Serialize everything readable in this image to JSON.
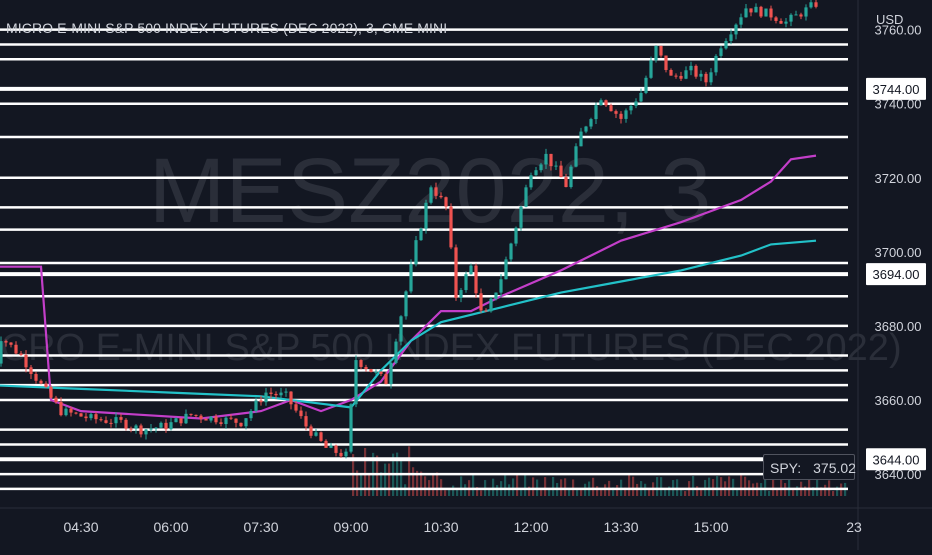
{
  "header": {
    "symbol_title": "MICRO E-MINI S&P 500 INDEX FUTURES (DEC 2022), 3, CME  MINI",
    "currency": "USD"
  },
  "watermark": {
    "ticker": "MESZ2022, 3",
    "description": "MICRO E-MINI S&P 500 INDEX FUTURES (DEC 2022)"
  },
  "spy_label": {
    "name": "SPY:",
    "value": "375.02"
  },
  "colors": {
    "background": "#131722",
    "text": "#d1d4dc",
    "up_candle": "#26a69a",
    "down_candle": "#ef5350",
    "magenta_line": "#c33ec9",
    "cyan_line": "#22c1c8",
    "level_line": "#ffffff",
    "price_tag_bg": "#ffffff",
    "price_tag_text": "#131722"
  },
  "chart_data": {
    "type": "candlestick",
    "title": "MICRO E-MINI S&P 500 INDEX FUTURES (DEC 2022), 3, CME  MINI",
    "ylabel": "USD",
    "ylim": [
      3633,
      3768
    ],
    "x_ticks": [
      "04:30",
      "06:00",
      "07:30",
      "09:00",
      "10:30",
      "12:00",
      "13:30",
      "15:00",
      "23"
    ],
    "y_ticks": [
      3640,
      3660,
      3680,
      3700,
      3720,
      3740,
      3760
    ],
    "price_tags": [
      3744,
      3694,
      3644
    ],
    "horizontal_levels": [
      3644,
      3694,
      3744,
      3636,
      3640,
      3648,
      3652,
      3660,
      3664,
      3668,
      3672,
      3680,
      3688,
      3697,
      3706,
      3712,
      3720,
      3731,
      3740,
      3752,
      3756,
      3760
    ],
    "grid": false,
    "price_path": [
      [
        "03:00",
        3664
      ],
      [
        "03:10",
        3677
      ],
      [
        "03:30",
        3672
      ],
      [
        "03:50",
        3664
      ],
      [
        "04:10",
        3657
      ],
      [
        "04:40",
        3655
      ],
      [
        "05:10",
        3654
      ],
      [
        "05:30",
        3652
      ],
      [
        "05:55",
        3653
      ],
      [
        "06:20",
        3656
      ],
      [
        "06:45",
        3655
      ],
      [
        "07:10",
        3654
      ],
      [
        "07:35",
        3662
      ],
      [
        "07:55",
        3661
      ],
      [
        "08:15",
        3653
      ],
      [
        "08:35",
        3647
      ],
      [
        "08:55",
        3645
      ],
      [
        "09:05",
        3671
      ],
      [
        "09:20",
        3668
      ],
      [
        "09:35",
        3665
      ],
      [
        "09:50",
        3683
      ],
      [
        "10:05",
        3702
      ],
      [
        "10:20",
        3718
      ],
      [
        "10:35",
        3712
      ],
      [
        "10:45",
        3688
      ],
      [
        "11:00",
        3696
      ],
      [
        "11:12",
        3681
      ],
      [
        "11:30",
        3693
      ],
      [
        "11:45",
        3707
      ],
      [
        "12:00",
        3722
      ],
      [
        "12:15",
        3726
      ],
      [
        "12:35",
        3718
      ],
      [
        "12:50",
        3732
      ],
      [
        "13:10",
        3742
      ],
      [
        "13:30",
        3736
      ],
      [
        "13:50",
        3743
      ],
      [
        "14:05",
        3755
      ],
      [
        "14:20",
        3747
      ],
      [
        "14:40",
        3749
      ],
      [
        "14:55",
        3746
      ],
      [
        "15:10",
        3756
      ],
      [
        "15:35",
        3766
      ],
      [
        "16:00",
        3764
      ],
      [
        "16:15",
        3762
      ],
      [
        "16:45",
        3767
      ]
    ],
    "series": [
      {
        "name": "",
        "color": "#c33ec9",
        "points": [
          [
            "03:00",
            3696
          ],
          [
            "03:50",
            3696
          ],
          [
            "04:00",
            3660
          ],
          [
            "04:30",
            3657
          ],
          [
            "05:30",
            3656
          ],
          [
            "06:30",
            3655
          ],
          [
            "07:30",
            3657
          ],
          [
            "08:00",
            3660
          ],
          [
            "08:30",
            3657
          ],
          [
            "09:00",
            3660
          ],
          [
            "09:30",
            3665
          ],
          [
            "10:00",
            3676
          ],
          [
            "10:30",
            3684
          ],
          [
            "11:00",
            3684
          ],
          [
            "11:30",
            3688
          ],
          [
            "12:30",
            3695
          ],
          [
            "13:30",
            3703
          ],
          [
            "14:30",
            3708
          ],
          [
            "15:30",
            3714
          ],
          [
            "16:00",
            3719
          ],
          [
            "16:20",
            3725
          ],
          [
            "16:45",
            3726
          ]
        ]
      },
      {
        "name": "",
        "color": "#22c1c8",
        "points": [
          [
            "03:00",
            3664
          ],
          [
            "04:30",
            3663
          ],
          [
            "06:00",
            3662
          ],
          [
            "07:30",
            3661
          ],
          [
            "08:30",
            3659
          ],
          [
            "09:00",
            3658
          ],
          [
            "09:30",
            3668
          ],
          [
            "10:00",
            3676
          ],
          [
            "10:30",
            3681
          ],
          [
            "11:30",
            3685
          ],
          [
            "12:30",
            3689
          ],
          [
            "13:30",
            3692
          ],
          [
            "14:30",
            3695
          ],
          [
            "15:30",
            3699
          ],
          [
            "16:00",
            3702
          ],
          [
            "16:45",
            3703
          ]
        ]
      }
    ]
  }
}
